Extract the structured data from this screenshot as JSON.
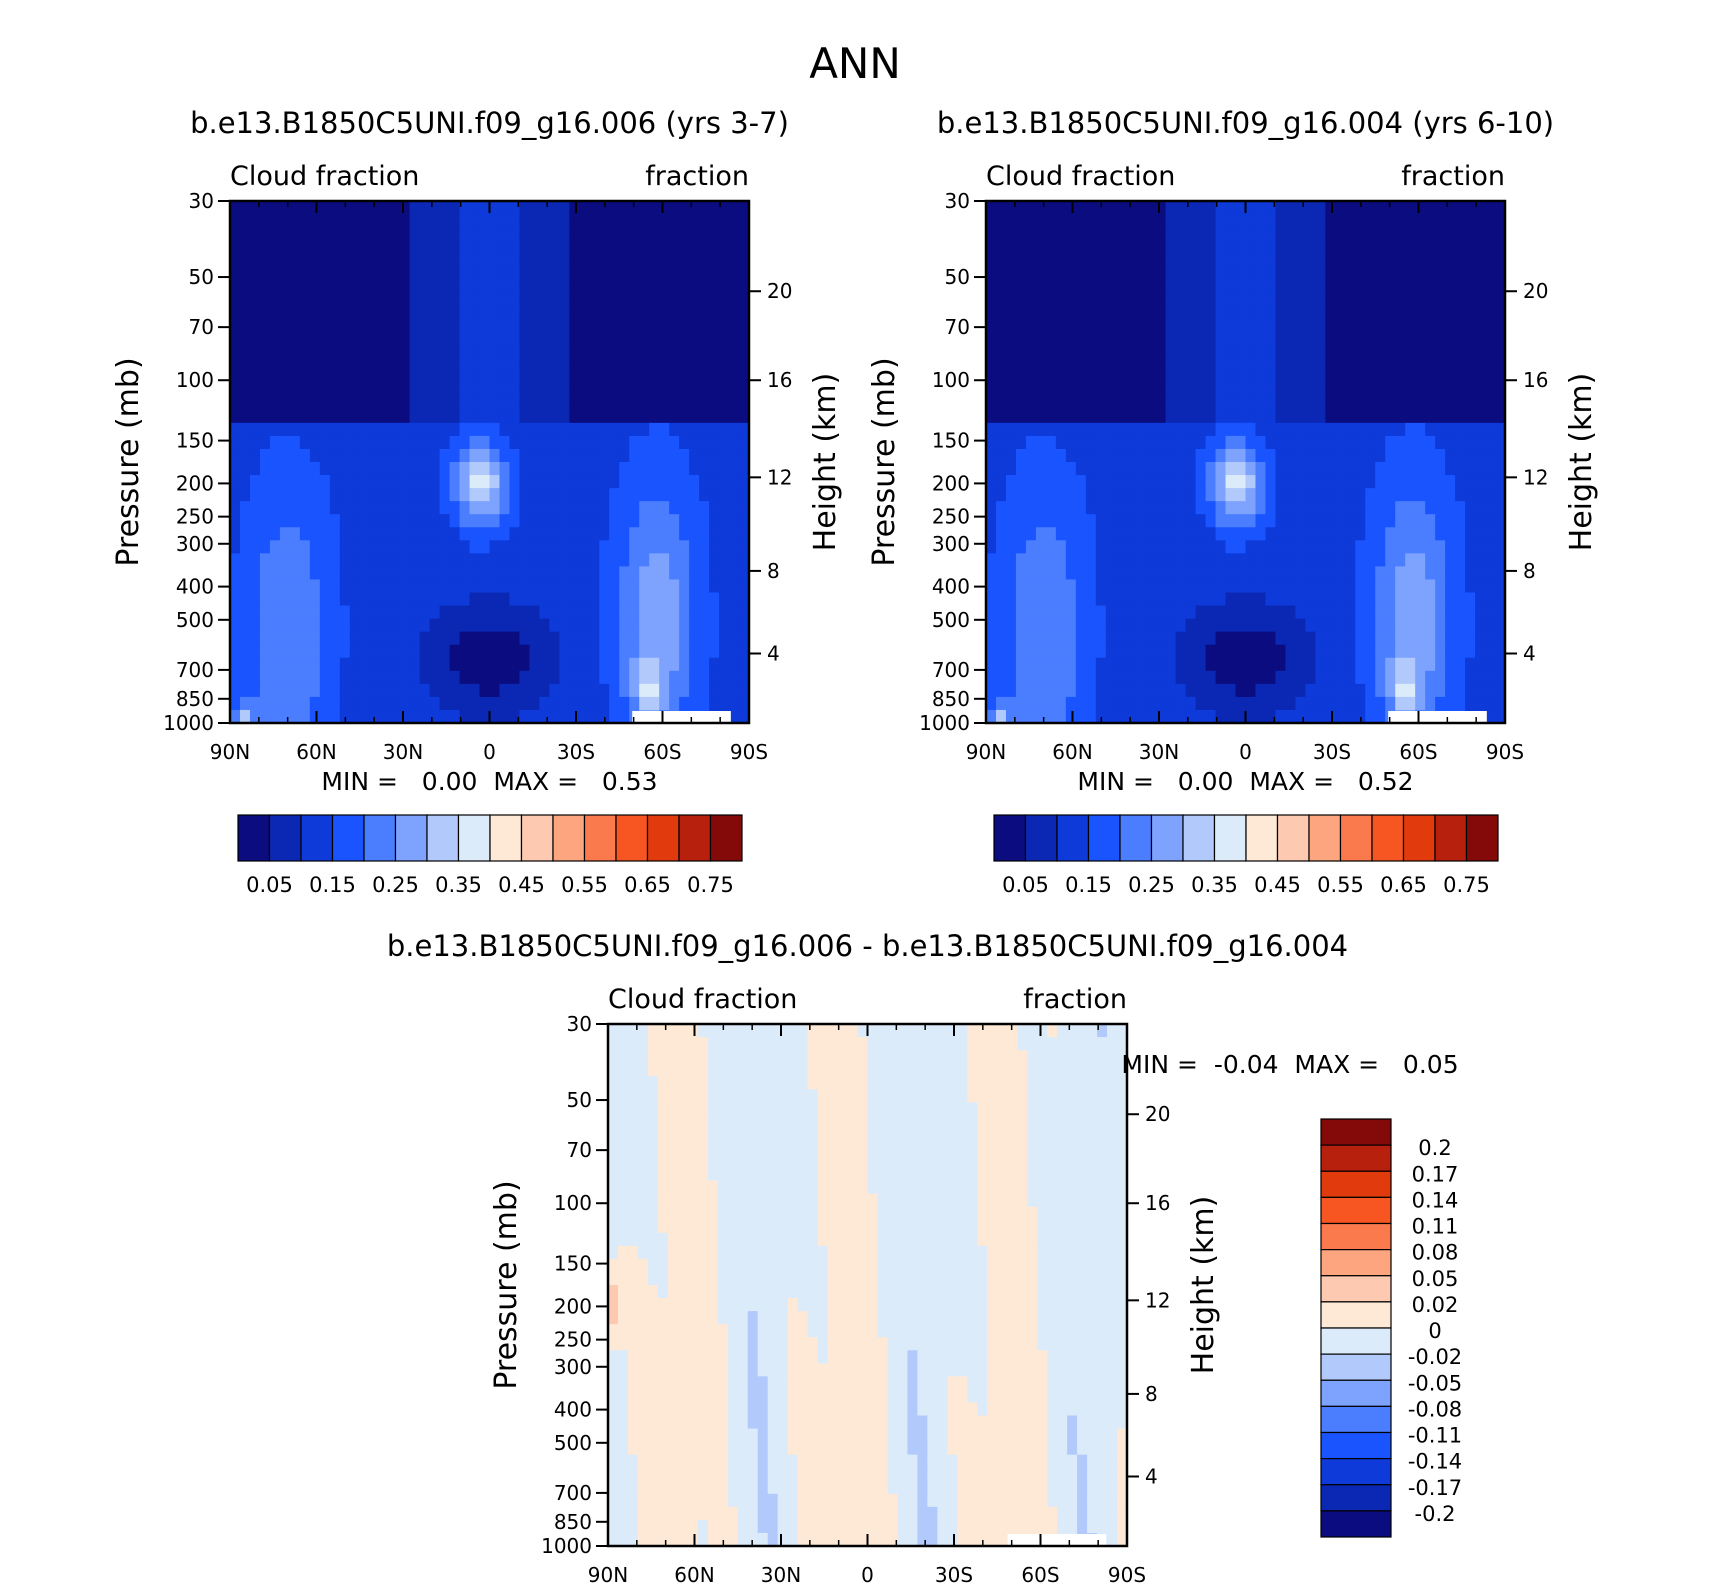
{
  "figure_title": "ANN",
  "chart_data": [
    {
      "type": "heatmap",
      "title": "b.e13.B1850C5UNI.f09_g16.006 (yrs 3-7)",
      "left_label": "Cloud fraction",
      "right_label": "fraction",
      "xlabel": "",
      "ylabel": "Pressure (mb)",
      "ylabel_right": "Height (km)",
      "x_ticks": [
        "90N",
        "60N",
        "30N",
        "0",
        "30S",
        "60S",
        "90S"
      ],
      "y_ticks": [
        "30",
        "50",
        "70",
        "100",
        "150",
        "200",
        "250",
        "300",
        "400",
        "500",
        "700",
        "850",
        "1000"
      ],
      "y_ticks_right": [
        "20",
        "16",
        "12",
        "8",
        "4"
      ],
      "ylim": [
        1000,
        30
      ],
      "min_max_text": "MIN =   0.00  MAX =   0.53",
      "min": 0.0,
      "max": 0.53,
      "colorbar": {
        "orientation": "horizontal",
        "labels": [
          "0.05",
          "0.15",
          "0.25",
          "0.35",
          "0.45",
          "0.55",
          "0.65",
          "0.75"
        ],
        "colors": [
          "#0b0c80",
          "#0b28b4",
          "#0d3ad9",
          "#1a54ff",
          "#4b7dff",
          "#7ea3ff",
          "#b1cafb",
          "#dcebfa",
          "#fde9d6",
          "#fdcab1",
          "#fca57e",
          "#fb7a4d",
          "#f75522",
          "#e03a0d",
          "#b6200c",
          "#840a0a"
        ]
      }
    },
    {
      "type": "heatmap",
      "title": "b.e13.B1850C5UNI.f09_g16.004 (yrs 6-10)",
      "left_label": "Cloud fraction",
      "right_label": "fraction",
      "xlabel": "",
      "ylabel": "Pressure (mb)",
      "ylabel_right": "Height (km)",
      "x_ticks": [
        "90N",
        "60N",
        "30N",
        "0",
        "30S",
        "60S",
        "90S"
      ],
      "y_ticks": [
        "30",
        "50",
        "70",
        "100",
        "150",
        "200",
        "250",
        "300",
        "400",
        "500",
        "700",
        "850",
        "1000"
      ],
      "y_ticks_right": [
        "20",
        "16",
        "12",
        "8",
        "4"
      ],
      "ylim": [
        1000,
        30
      ],
      "min_max_text": "MIN =   0.00  MAX =   0.52",
      "min": 0.0,
      "max": 0.52,
      "colorbar": {
        "orientation": "horizontal",
        "labels": [
          "0.05",
          "0.15",
          "0.25",
          "0.35",
          "0.45",
          "0.55",
          "0.65",
          "0.75"
        ],
        "colors": [
          "#0b0c80",
          "#0b28b4",
          "#0d3ad9",
          "#1a54ff",
          "#4b7dff",
          "#7ea3ff",
          "#b1cafb",
          "#dcebfa",
          "#fde9d6",
          "#fdcab1",
          "#fca57e",
          "#fb7a4d",
          "#f75522",
          "#e03a0d",
          "#b6200c",
          "#840a0a"
        ]
      }
    },
    {
      "type": "heatmap",
      "title": "b.e13.B1850C5UNI.f09_g16.006 - b.e13.B1850C5UNI.f09_g16.004",
      "left_label": "Cloud fraction",
      "right_label": "fraction",
      "xlabel": "",
      "ylabel": "Pressure (mb)",
      "ylabel_right": "Height (km)",
      "x_ticks": [
        "90N",
        "60N",
        "30N",
        "0",
        "30S",
        "60S",
        "90S"
      ],
      "y_ticks": [
        "30",
        "50",
        "70",
        "100",
        "150",
        "200",
        "250",
        "300",
        "400",
        "500",
        "700",
        "850",
        "1000"
      ],
      "y_ticks_right": [
        "20",
        "16",
        "12",
        "8",
        "4"
      ],
      "ylim": [
        1000,
        30
      ],
      "min_max_text": "MIN =  -0.04  MAX =   0.05",
      "min": -0.04,
      "max": 0.05,
      "colorbar": {
        "orientation": "vertical",
        "labels": [
          "0.2",
          "0.17",
          "0.14",
          "0.11",
          "0.08",
          "0.05",
          "0.02",
          "0",
          "-0.02",
          "-0.05",
          "-0.08",
          "-0.11",
          "-0.14",
          "-0.17",
          "-0.2"
        ],
        "colors": [
          "#840a0a",
          "#b6200c",
          "#e03a0d",
          "#f75522",
          "#fb7a4d",
          "#fca57e",
          "#fdcab1",
          "#fde9d6",
          "#dcebfa",
          "#b1cafb",
          "#7ea3ff",
          "#4b7dff",
          "#1a54ff",
          "#0d3ad9",
          "#0b28b4",
          "#0b0c80"
        ]
      }
    }
  ]
}
